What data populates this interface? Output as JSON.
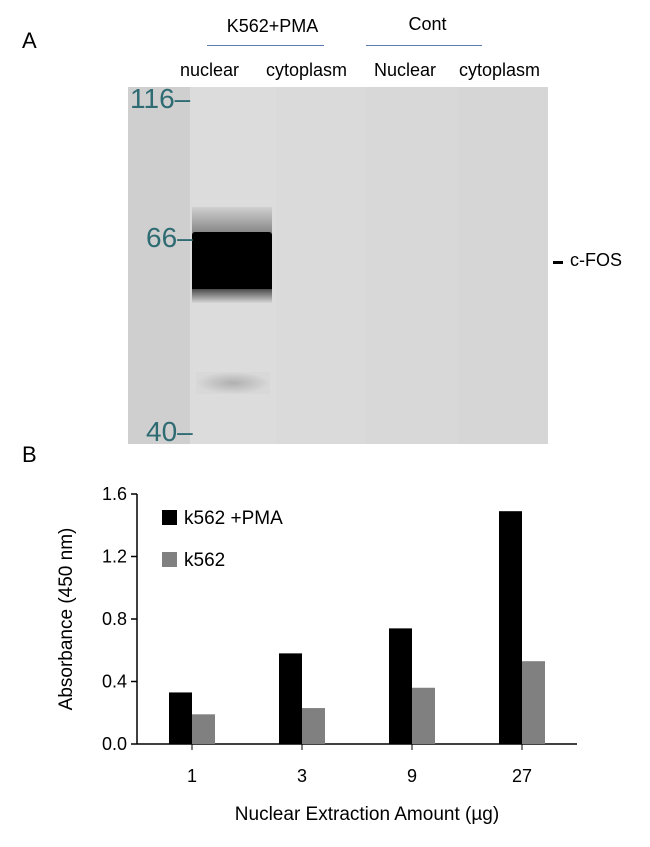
{
  "panel_a": {
    "letter": "A",
    "groups": [
      {
        "label": "K562+PMA"
      },
      {
        "label": "Cont"
      }
    ],
    "lanes": [
      {
        "label": "nuclear"
      },
      {
        "label": "cytoplasm"
      },
      {
        "label": "Nuclear"
      },
      {
        "label": "cytoplasm"
      }
    ],
    "mw_markers": [
      {
        "label": "116–"
      },
      {
        "label": "66–"
      },
      {
        "label": "40–"
      }
    ],
    "band_annotation": "– c-FOS",
    "band_annotation_text": "c-FOS",
    "colors": {
      "membrane": "#d9d9d9",
      "band": "#000000",
      "marker_text": "#2e6b73",
      "group_line": "#5b7fb5"
    }
  },
  "panel_b": {
    "letter": "B"
  },
  "chart_data": {
    "type": "bar",
    "categories": [
      "1",
      "3",
      "9",
      "27"
    ],
    "series": [
      {
        "name": "k562 +PMA",
        "values": [
          0.33,
          0.58,
          0.74,
          1.49
        ],
        "color": "#000000"
      },
      {
        "name": "k562",
        "values": [
          0.19,
          0.23,
          0.36,
          0.53
        ],
        "color": "#808080"
      }
    ],
    "xlabel": "Nuclear Extraction Amount (µg)",
    "ylabel": "Absorbance (450 nm)",
    "ylim": [
      0,
      1.6
    ],
    "yticks": [
      "0.0",
      "0.4",
      "0.8",
      "1.2",
      "1.6"
    ],
    "grid": false,
    "legend_position": "top-left"
  }
}
